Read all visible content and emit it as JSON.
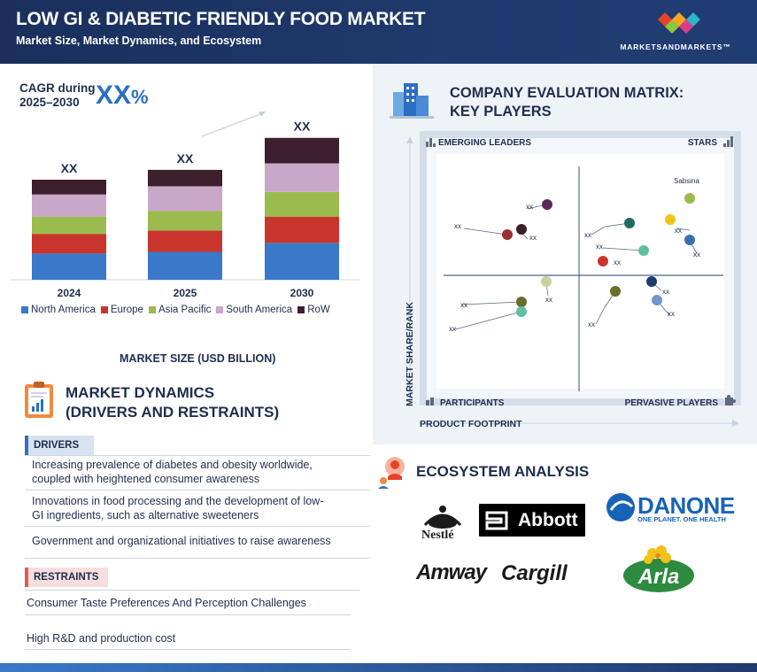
{
  "header": {
    "title": "LOW GI & DIABETIC FRIENDLY FOOD  MARKET",
    "subtitle": "Market Size, Market Dynamics, and Ecosystem",
    "brand": "MARKETSANDMARKETS™"
  },
  "cagr": {
    "label_line1": "CAGR during",
    "label_line2": "2025–2030",
    "value": "XX",
    "unit": "%"
  },
  "chart_data": {
    "type": "bar",
    "stacked": true,
    "categories": [
      "2024",
      "2025",
      "2030"
    ],
    "bar_totals_labels": [
      "XX",
      "XX",
      "XX"
    ],
    "series": [
      {
        "name": "North America",
        "color": "#3a79c9",
        "values": [
          32,
          34,
          45
        ]
      },
      {
        "name": "Europe",
        "color": "#c9352d",
        "values": [
          24,
          26,
          32
        ]
      },
      {
        "name": "Asia Pacific",
        "color": "#9bbb4f",
        "values": [
          21,
          24,
          30
        ]
      },
      {
        "name": "South America",
        "color": "#c8a7c9",
        "values": [
          27,
          30,
          35
        ]
      },
      {
        "name": "RoW",
        "color": "#3d1f2e",
        "values": [
          18,
          20,
          31
        ]
      }
    ],
    "xlabel": "MARKET SIZE (USD BILLION)",
    "ylim": [
      0,
      190
    ],
    "growth_arrow": true,
    "grid": false,
    "legend_position": "bottom"
  },
  "market_dynamics": {
    "title_line1": "MARKET DYNAMICS",
    "title_line2": "(DRIVERS AND RESTRAINTS)",
    "drivers_label": "DRIVERS",
    "drivers": [
      {
        "line1": " Increasing prevalence of diabetes and obesity worldwide,",
        "line2": "coupled with heightened consumer awareness"
      },
      {
        "line1": "Innovations in food processing and the development of low-",
        "line2": "GI ingredients, such as alternative sweeteners"
      },
      {
        "line1": "Government and organizational initiatives to raise awareness",
        "line2": ""
      }
    ],
    "restraints_label": "RESTRAINTS",
    "restraints": [
      "Consumer Taste Preferences And Perception Challenges",
      "High R&D and production cost"
    ]
  },
  "matrix": {
    "title_line1": "COMPANY EVALUATION MATRIX:",
    "title_line2": "KEY PLAYERS",
    "quadrants": {
      "top_left": "EMERGING LEADERS",
      "top_right": "STARS",
      "bottom_left": "PARTICIPANTS",
      "bottom_right": "PERVASIVE PLAYERS"
    },
    "x_axis": "PRODUCT FOOTPRINT",
    "y_axis": "MARKET SHARE/RANK",
    "highlight_label": "Sabsina",
    "point_label": "xx"
  },
  "ecosystem": {
    "title": "ECOSYSTEM ANALYSIS",
    "logos": {
      "nestle": "Nestlé",
      "abbott": "Abbott",
      "danone": "DANONE",
      "danone_tag": "ONE PLANET. ONE HEALTH",
      "amway": "Amway",
      "cargill": "Cargill",
      "arla": "Arla"
    }
  },
  "colors": {
    "navy": "#1f2d4e",
    "header_bg": "#1a2f5c",
    "accent_blue": "#2a6fc4",
    "green": "#9bbb4f",
    "maroon": "#3d1f2e",
    "red": "#c9352d",
    "teal": "#1f6b62",
    "olive": "#6b6b2a",
    "yellow": "#f2c21b",
    "mint": "#5fbfa0",
    "lightblue": "#6f97c9",
    "navy_dot": "#1f3a6d",
    "steel": "#3b6fb0",
    "purple": "#5a2a5e"
  }
}
